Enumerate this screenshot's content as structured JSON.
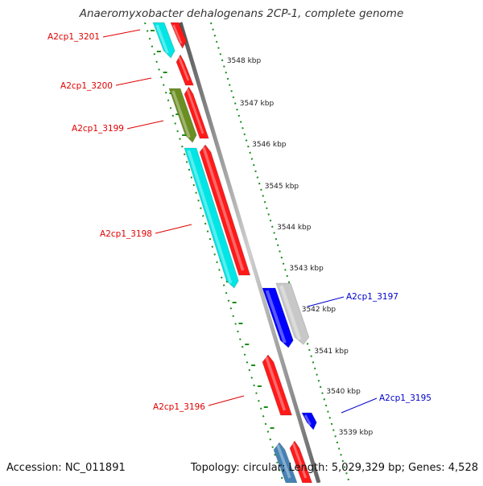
{
  "title": "Anaeromyxobacter dehalogenans 2CP-1, complete genome",
  "footer": {
    "accession": "Accession: NC_011891",
    "stats": "Topology: circular; Length: 5,029,329 bp; Genes: 4,528"
  },
  "colors": {
    "gene_red": "#ff1a1a",
    "gene_cyan": "#00e5e5",
    "gene_olive": "#6b8e23",
    "gene_blue": "#0000ff",
    "gene_grey": "#c8c8c8",
    "gene_steelblue": "#4682b4",
    "backbone": "#8c8c8c",
    "tick": "#1a8c1a",
    "label_red": "#e00000",
    "label_blue": "#0000cc"
  },
  "scale_ticks": [
    "3548 kbp",
    "3547 kbp",
    "3546 kbp",
    "3545 kbp",
    "3544 kbp",
    "3543 kbp",
    "3542 kbp",
    "3541 kbp",
    "3540 kbp",
    "3539 kbp"
  ],
  "gene_labels": [
    {
      "text": "A2cp1_3201",
      "color": "label_red"
    },
    {
      "text": "A2cp1_3200",
      "color": "label_red"
    },
    {
      "text": "A2cp1_3199",
      "color": "label_red"
    },
    {
      "text": "A2cp1_3198",
      "color": "label_red"
    },
    {
      "text": "A2cp1_3197",
      "color": "label_blue"
    },
    {
      "text": "A2cp1_3196",
      "color": "label_red"
    },
    {
      "text": "A2cp1_3195",
      "color": "label_blue"
    }
  ]
}
